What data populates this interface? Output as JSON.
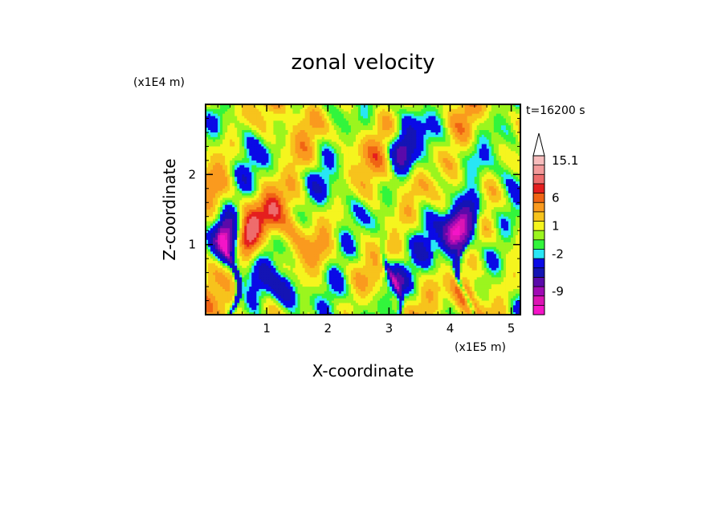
{
  "chart_data": {
    "type": "heatmap",
    "title": "zonal velocity",
    "xlabel": "X-coordinate",
    "ylabel": "Z-coordinate",
    "x_unit": "(x1E5 m)",
    "y_unit": "(x1E4 m)",
    "time_label": "t=16200 s",
    "xlim": [
      0,
      5.15
    ],
    "ylim": [
      0,
      3.0
    ],
    "x_ticks": [
      {
        "value": 1,
        "label": "1"
      },
      {
        "value": 2,
        "label": "2"
      },
      {
        "value": 3,
        "label": "3"
      },
      {
        "value": 4,
        "label": "4"
      },
      {
        "value": 5,
        "label": "5"
      }
    ],
    "y_ticks": [
      {
        "value": 1,
        "label": "1"
      },
      {
        "value": 2,
        "label": "2"
      }
    ],
    "colorbar": {
      "levels": [
        {
          "label": "15.1",
          "color": "#f7bcbc"
        },
        {
          "label": "",
          "color": "#f39a9a"
        },
        {
          "label": "",
          "color": "#ee6c6c"
        },
        {
          "label": "",
          "color": "#e51e1e"
        },
        {
          "label": "6",
          "color": "#f06414"
        },
        {
          "label": "",
          "color": "#fa9a1e"
        },
        {
          "label": "",
          "color": "#f7c31c"
        },
        {
          "label": "1",
          "color": "#f5f51e"
        },
        {
          "label": "",
          "color": "#9bf51e"
        },
        {
          "label": "",
          "color": "#32f53c"
        },
        {
          "label": "-2",
          "color": "#28e6f5"
        },
        {
          "label": "",
          "color": "#0a0ae6"
        },
        {
          "label": "",
          "color": "#1414b4"
        },
        {
          "label": "",
          "color": "#5a0aaa"
        },
        {
          "label": "-9",
          "color": "#a00ab4"
        },
        {
          "label": "",
          "color": "#dc14b4"
        },
        {
          "label": "",
          "color": "#f514c8"
        }
      ],
      "extend": "max"
    },
    "features": [
      {
        "name": "orange-band",
        "x": 0.7,
        "z": 1.15,
        "amp": 9.0
      },
      {
        "name": "orange-patch-2",
        "x": 1.1,
        "z": 1.5,
        "amp": 6.0
      },
      {
        "name": "blue-patch-left",
        "x": 0.35,
        "z": 1.1,
        "amp": -12.0
      },
      {
        "name": "blue-patch-right",
        "x": 4.1,
        "z": 1.15,
        "amp": -13.0
      },
      {
        "name": "blue-upper-right",
        "x": 4.35,
        "z": 1.45,
        "amp": -10.0
      },
      {
        "name": "blue-mid",
        "x": 3.2,
        "z": 2.3,
        "amp": -6.0
      },
      {
        "name": "blue-lower",
        "x": 1.3,
        "z": 0.35,
        "amp": -7.0
      },
      {
        "name": "blue-column-3",
        "x": 3.1,
        "z": 0.5,
        "amp": -8.0
      },
      {
        "name": "orange-low-4",
        "x": 4.2,
        "z": 0.35,
        "amp": 6.0
      }
    ]
  }
}
